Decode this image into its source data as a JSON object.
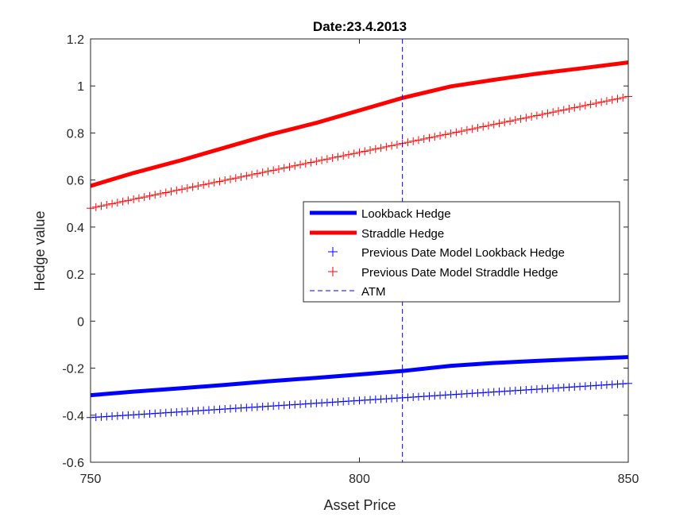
{
  "chart_data": {
    "type": "line",
    "title": "Date:23.4.2013",
    "xlabel": "Asset Price",
    "ylabel": "Hedge value",
    "xlim": [
      750,
      850
    ],
    "ylim": [
      -0.6,
      1.2
    ],
    "xticks": [
      750,
      800,
      850
    ],
    "xtick_labels": [
      "750",
      "800",
      "850"
    ],
    "yticks": [
      -0.6,
      -0.4,
      -0.2,
      0,
      0.2,
      0.4,
      0.6,
      0.8,
      1,
      1.2
    ],
    "ytick_labels": [
      "-0.6",
      "-0.4",
      "-0.2",
      "0",
      "0.2",
      "0.4",
      "0.6",
      "0.8",
      "1",
      "1.2"
    ],
    "grid": false,
    "legend_position": "center-right",
    "series": [
      {
        "name": "Lookback Hedge",
        "style": "solid-thick",
        "color": "#0000ff",
        "x": [
          750,
          758,
          767,
          775,
          783,
          792,
          800,
          808,
          817,
          825,
          833,
          842,
          850
        ],
        "y": [
          -0.315,
          -0.3,
          -0.285,
          -0.271,
          -0.256,
          -0.241,
          -0.227,
          -0.212,
          -0.19,
          -0.178,
          -0.169,
          -0.16,
          -0.153
        ]
      },
      {
        "name": "Straddle Hedge",
        "style": "solid-thick",
        "color": "#ff0000",
        "x": [
          750,
          758,
          767,
          775,
          783,
          792,
          800,
          808,
          817,
          825,
          833,
          842,
          850
        ],
        "y": [
          0.575,
          0.63,
          0.685,
          0.738,
          0.791,
          0.843,
          0.896,
          0.949,
          0.998,
          1.026,
          1.052,
          1.077,
          1.1
        ]
      },
      {
        "name": "Previous Date Model Lookback Hedge",
        "style": "plus-markers",
        "color": "#0000ff",
        "x_start": 750,
        "x_end": 850,
        "count": 101,
        "y_start": -0.41,
        "y_end": -0.265
      },
      {
        "name": "Previous Date Model Straddle Hedge",
        "style": "plus-markers",
        "color": "#ff0000",
        "x_start": 750,
        "x_end": 850,
        "count": 101,
        "y_start": 0.48,
        "y_end": 0.955
      },
      {
        "name": "ATM",
        "style": "dashed-vertical",
        "color": "#0000ff",
        "x": 808
      }
    ]
  },
  "legend_items": [
    {
      "label": "Lookback Hedge"
    },
    {
      "label": "Straddle Hedge"
    },
    {
      "label": "Previous Date Model Lookback Hedge"
    },
    {
      "label": "Previous Date Model Straddle Hedge"
    },
    {
      "label": "ATM"
    }
  ]
}
